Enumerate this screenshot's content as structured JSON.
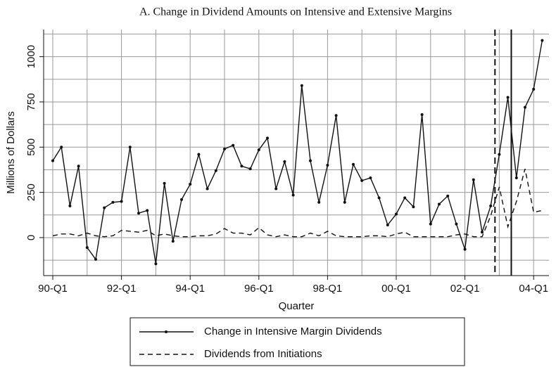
{
  "chart_data": {
    "type": "line",
    "title": "A. Change in Dividend Amounts on Intensive and Extensive Margins",
    "y_label": "Millions of Dollars",
    "x_label": "Quarter",
    "categories": [
      "90-Q1",
      null,
      null,
      null,
      null,
      null,
      null,
      null,
      "92-Q1",
      null,
      null,
      null,
      null,
      null,
      null,
      null,
      "94-Q1",
      null,
      null,
      null,
      null,
      null,
      null,
      null,
      "96-Q1",
      null,
      null,
      null,
      null,
      null,
      null,
      null,
      "98-Q1",
      null,
      null,
      null,
      null,
      null,
      null,
      null,
      "00-Q1",
      null,
      null,
      null,
      null,
      null,
      null,
      null,
      "02-Q1",
      null,
      null,
      null,
      null,
      null,
      null,
      null,
      "04-Q1",
      null
    ],
    "series": [
      {
        "name": "Change in Intensive Margin Dividends",
        "color": "#111111",
        "style": "solid",
        "markers": true,
        "values": [
          425,
          500,
          175,
          395,
          -55,
          -120,
          165,
          195,
          200,
          500,
          135,
          150,
          -145,
          300,
          -20,
          210,
          295,
          460,
          270,
          370,
          490,
          510,
          395,
          380,
          485,
          550,
          270,
          420,
          235,
          840,
          425,
          195,
          400,
          675,
          195,
          405,
          315,
          330,
          220,
          70,
          130,
          220,
          170,
          680,
          75,
          185,
          230,
          75,
          -65,
          320,
          30,
          175,
          460,
          775,
          330,
          720,
          820,
          1090
        ]
      },
      {
        "name": "Dividends from Initiations",
        "color": "#111111",
        "style": "dashed",
        "markers": false,
        "values": [
          10,
          20,
          20,
          10,
          25,
          10,
          5,
          10,
          40,
          35,
          30,
          40,
          10,
          20,
          10,
          5,
          5,
          10,
          10,
          20,
          50,
          25,
          25,
          15,
          55,
          15,
          5,
          15,
          5,
          5,
          25,
          10,
          35,
          10,
          5,
          5,
          5,
          10,
          10,
          5,
          20,
          30,
          5,
          5,
          5,
          5,
          5,
          15,
          20,
          5,
          5,
          120,
          280,
          60,
          200,
          380,
          140,
          150
        ]
      }
    ],
    "reference_lines": [
      {
        "x": 51.5,
        "style": "dashed"
      },
      {
        "x": 53.4,
        "style": "solid"
      }
    ],
    "ylim": [
      -210,
      1150
    ],
    "yticks": [
      0,
      250,
      500,
      750,
      1000
    ],
    "y_grid": [
      -125,
      0,
      125,
      250,
      375,
      500,
      625,
      750,
      875,
      1000,
      1125
    ],
    "grid": true,
    "legend": "bottom"
  }
}
